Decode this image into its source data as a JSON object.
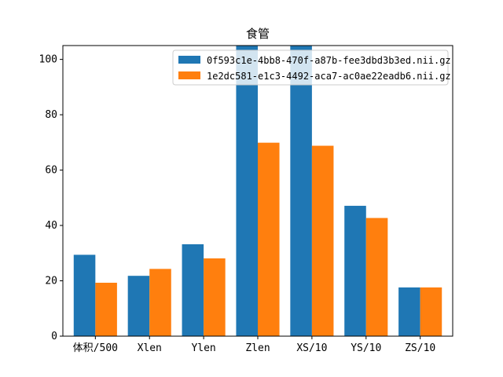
{
  "chart_data": {
    "type": "bar",
    "title": "食管",
    "categories": [
      "体积/500",
      "Xlen",
      "Ylen",
      "Zlen",
      "XS/10",
      "YS/10",
      "ZS/10"
    ],
    "series": [
      {
        "name": "0f593c1e-4bb8-470f-a87b-fee3dbd3b3ed.nii.gz",
        "color": "#1f77b4",
        "values": [
          29.4,
          21.8,
          33.2,
          105,
          105,
          47.1,
          17.6
        ]
      },
      {
        "name": "1e2dc581-e1c3-4492-aca7-ac0ae22eadb6.nii.gz",
        "color": "#ff7f0e",
        "values": [
          19.3,
          24.3,
          28.1,
          69.9,
          68.8,
          42.7,
          17.6
        ]
      }
    ],
    "ylim": [
      0,
      105
    ],
    "yticks": [
      0,
      20,
      40,
      60,
      80,
      100
    ],
    "xlabel": "",
    "ylabel": "",
    "grid": false,
    "legend_position": "top-right"
  }
}
